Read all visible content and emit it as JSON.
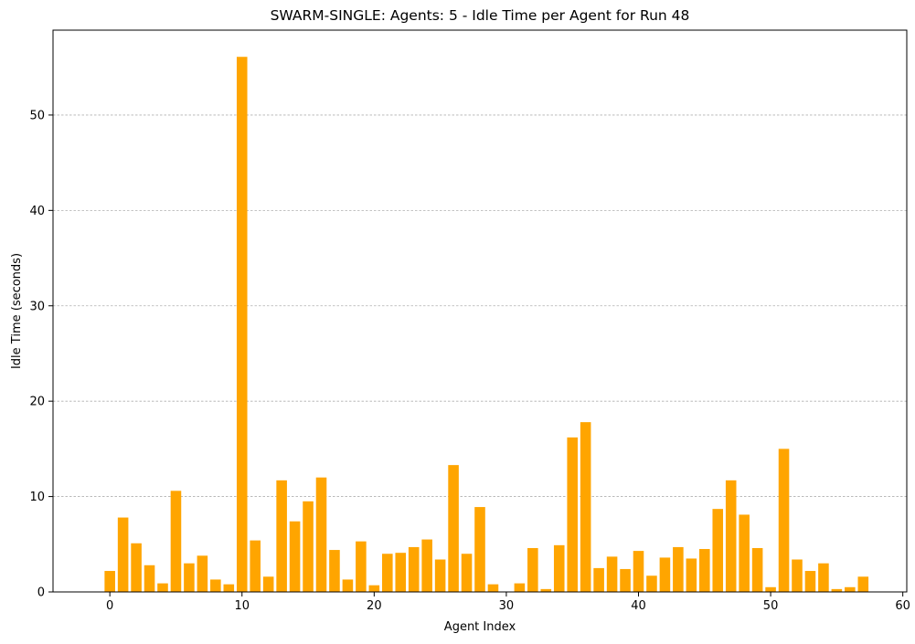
{
  "chart_data": {
    "type": "bar",
    "title": "SWARM-SINGLE: Agents: 5 - Idle Time per Agent for Run 48",
    "xlabel": "Agent Index",
    "ylabel": "Idle Time (seconds)",
    "x": [
      0,
      1,
      2,
      3,
      4,
      5,
      6,
      7,
      8,
      9,
      10,
      11,
      12,
      13,
      14,
      15,
      16,
      17,
      18,
      19,
      20,
      21,
      22,
      23,
      24,
      25,
      26,
      27,
      28,
      29,
      30,
      31,
      32,
      33,
      34,
      35,
      36,
      37,
      38,
      39,
      40,
      41,
      42,
      43,
      44,
      45,
      46,
      47,
      48,
      49,
      50,
      51,
      52,
      53,
      54,
      55,
      56,
      57
    ],
    "values": [
      2.2,
      7.8,
      5.1,
      2.8,
      0.9,
      10.6,
      3.0,
      3.8,
      1.3,
      0.8,
      56.1,
      5.4,
      1.6,
      11.7,
      7.4,
      9.5,
      12.0,
      4.4,
      1.3,
      5.3,
      0.7,
      4.0,
      4.1,
      4.7,
      5.5,
      3.4,
      13.3,
      4.0,
      8.9,
      0.8,
      0.0,
      0.9,
      4.6,
      0.3,
      4.9,
      16.2,
      17.8,
      2.5,
      3.7,
      2.4,
      4.3,
      1.7,
      3.6,
      4.7,
      3.5,
      4.5,
      8.7,
      11.7,
      8.1,
      4.6,
      0.5,
      15.0,
      3.4,
      2.2,
      3.0,
      0.3,
      0.5,
      1.6
    ],
    "xlim": [
      -4.3,
      60.3
    ],
    "ylim": [
      0,
      58.9
    ],
    "xticks": [
      0,
      10,
      20,
      30,
      40,
      50,
      60
    ],
    "yticks": [
      0,
      10,
      20,
      30,
      40,
      50
    ],
    "grid": "y-dashed",
    "bar_color": "#FFA500",
    "gridline_color": "#b0b0b0"
  }
}
